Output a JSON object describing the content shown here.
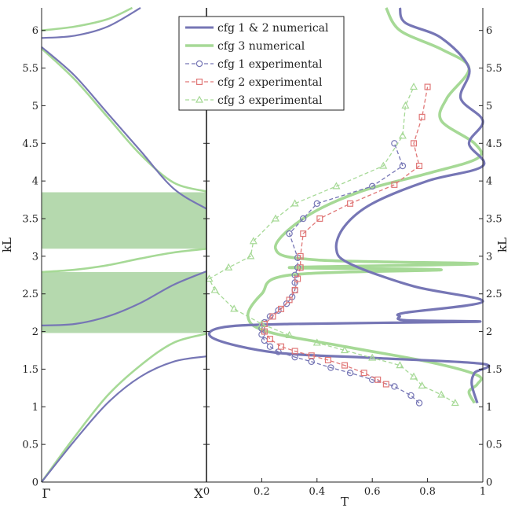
{
  "chart_data": [
    {
      "type": "line",
      "panel": "band-structure",
      "xlabel_left": "Γ",
      "xlabel_right": "X",
      "ylabel": "kL",
      "ylim": [
        0,
        6.3
      ],
      "xlim": [
        0,
        1
      ],
      "yticks": [
        "0",
        "0.5",
        "1",
        "1.5",
        "2",
        "2.5",
        "3",
        "3.5",
        "4",
        "4.5",
        "5",
        "5.5",
        "6"
      ],
      "bandgaps": [
        {
          "name": "bandgap-1",
          "from": 1.98,
          "to": 2.79
        },
        {
          "name": "bandgap-2",
          "from": 3.1,
          "to": 3.85
        }
      ],
      "series": [
        {
          "name": "cfg 1 & 2 numerical",
          "branches": [
            {
              "x": [
                0,
                0.2,
                0.4,
                0.6,
                0.8,
                1.0
              ],
              "y": [
                0,
                0.55,
                1.05,
                1.4,
                1.6,
                1.67
              ]
            },
            {
              "x": [
                0,
                0.2,
                0.4,
                0.6,
                0.8,
                1.0
              ],
              "y": [
                2.08,
                2.1,
                2.2,
                2.38,
                2.62,
                2.8
              ]
            },
            {
              "x": [
                0,
                0.2,
                0.4,
                0.6,
                0.8,
                1.0
              ],
              "y": [
                5.78,
                5.4,
                4.9,
                4.4,
                3.9,
                3.63
              ]
            },
            {
              "x": [
                0,
                0.2,
                0.4,
                0.6
              ],
              "y": [
                5.9,
                5.93,
                6.05,
                6.3
              ]
            }
          ]
        },
        {
          "name": "cfg 3 numerical",
          "branches": [
            {
              "x": [
                0,
                0.2,
                0.4,
                0.6,
                0.8,
                1.0
              ],
              "y": [
                0,
                0.6,
                1.15,
                1.55,
                1.85,
                1.97
              ]
            },
            {
              "x": [
                0,
                0.2,
                0.4,
                0.6,
                0.8,
                1.0
              ],
              "y": [
                2.79,
                2.82,
                2.88,
                2.97,
                3.05,
                3.1
              ]
            },
            {
              "x": [
                0,
                0.2,
                0.4,
                0.6,
                0.8,
                1.0
              ],
              "y": [
                5.76,
                5.35,
                4.85,
                4.35,
                3.98,
                3.86
              ]
            },
            {
              "x": [
                0,
                0.2,
                0.4,
                0.55
              ],
              "y": [
                6.0,
                6.05,
                6.15,
                6.3
              ]
            }
          ]
        }
      ]
    },
    {
      "type": "line",
      "panel": "transmission",
      "xlabel": "T",
      "ylabel": "kL",
      "xlim": [
        0,
        1
      ],
      "ylim": [
        0,
        6.3
      ],
      "xticks": [
        "0",
        "0.2",
        "0.4",
        "0.6",
        "0.8",
        "1"
      ],
      "yticks": [
        "0",
        "0.5",
        "1",
        "1.5",
        "2",
        "2.5",
        "3",
        "3.5",
        "4",
        "4.5",
        "5",
        "5.5",
        "6"
      ],
      "legend": {
        "placement": "top-center",
        "entries": [
          "cfg 1 & 2 numerical",
          "cfg 3 numerical",
          "cfg 1 experimental",
          "cfg 2 experimental",
          "cfg 3 experimental"
        ]
      },
      "series": [
        {
          "name": "cfg 1 & 2 numerical",
          "points": [
            [
              0.98,
              1.05
            ],
            [
              0.96,
              1.3
            ],
            [
              0.97,
              1.45
            ],
            [
              1.0,
              1.57
            ],
            [
              0.6,
              1.65
            ],
            [
              0.25,
              1.72
            ],
            [
              0.03,
              1.9
            ],
            [
              0.05,
              2.05
            ],
            [
              0.3,
              2.1
            ],
            [
              0.98,
              2.13
            ],
            [
              0.72,
              2.15
            ],
            [
              0.7,
              2.2
            ],
            [
              0.72,
              2.25
            ],
            [
              1.0,
              2.4
            ],
            [
              0.75,
              2.6
            ],
            [
              0.52,
              2.9
            ],
            [
              0.47,
              3.1
            ],
            [
              0.5,
              3.4
            ],
            [
              0.6,
              3.7
            ],
            [
              0.8,
              4.0
            ],
            [
              1.0,
              4.2
            ],
            [
              0.95,
              4.5
            ],
            [
              1.0,
              4.8
            ],
            [
              0.92,
              5.1
            ],
            [
              0.95,
              5.5
            ],
            [
              0.85,
              5.9
            ],
            [
              0.72,
              6.1
            ],
            [
              0.7,
              6.3
            ]
          ]
        },
        {
          "name": "cfg 3 numerical",
          "points": [
            [
              0.97,
              1.05
            ],
            [
              0.95,
              1.2
            ],
            [
              0.98,
              1.3
            ],
            [
              0.98,
              1.42
            ],
            [
              0.8,
              1.6
            ],
            [
              0.5,
              1.8
            ],
            [
              0.22,
              2.0
            ],
            [
              0.15,
              2.2
            ],
            [
              0.2,
              2.5
            ],
            [
              0.3,
              2.75
            ],
            [
              0.85,
              2.82
            ],
            [
              0.3,
              2.85
            ],
            [
              0.98,
              2.9
            ],
            [
              0.4,
              2.95
            ],
            [
              0.25,
              3.1
            ],
            [
              0.35,
              3.5
            ],
            [
              0.55,
              3.85
            ],
            [
              0.8,
              4.1
            ],
            [
              0.98,
              4.3
            ],
            [
              0.97,
              4.5
            ],
            [
              0.85,
              4.8
            ],
            [
              0.87,
              5.1
            ],
            [
              0.95,
              5.5
            ],
            [
              0.85,
              5.75
            ],
            [
              0.7,
              6.0
            ],
            [
              0.65,
              6.3
            ]
          ]
        },
        {
          "name": "cfg 1 experimental",
          "marker": "circle",
          "points": [
            [
              0.77,
              1.05
            ],
            [
              0.74,
              1.15
            ],
            [
              0.68,
              1.27
            ],
            [
              0.6,
              1.36
            ],
            [
              0.52,
              1.45
            ],
            [
              0.45,
              1.52
            ],
            [
              0.38,
              1.6
            ],
            [
              0.32,
              1.66
            ],
            [
              0.26,
              1.73
            ],
            [
              0.23,
              1.8
            ],
            [
              0.21,
              1.88
            ],
            [
              0.2,
              1.96
            ],
            [
              0.2,
              2.04
            ],
            [
              0.21,
              2.12
            ],
            [
              0.23,
              2.2
            ],
            [
              0.26,
              2.28
            ],
            [
              0.29,
              2.37
            ],
            [
              0.31,
              2.46
            ],
            [
              0.32,
              2.55
            ],
            [
              0.32,
              2.65
            ],
            [
              0.32,
              2.75
            ],
            [
              0.33,
              2.85
            ],
            [
              0.33,
              2.98
            ],
            [
              0.3,
              3.3
            ],
            [
              0.35,
              3.5
            ],
            [
              0.4,
              3.7
            ],
            [
              0.6,
              3.93
            ],
            [
              0.71,
              4.2
            ],
            [
              0.68,
              4.5
            ]
          ]
        },
        {
          "name": "cfg 2 experimental",
          "marker": "square",
          "points": [
            [
              0.65,
              1.3
            ],
            [
              0.62,
              1.36
            ],
            [
              0.57,
              1.45
            ],
            [
              0.5,
              1.55
            ],
            [
              0.44,
              1.62
            ],
            [
              0.38,
              1.68
            ],
            [
              0.32,
              1.74
            ],
            [
              0.27,
              1.8
            ],
            [
              0.23,
              1.9
            ],
            [
              0.21,
              2.0
            ],
            [
              0.21,
              2.1
            ],
            [
              0.24,
              2.2
            ],
            [
              0.27,
              2.3
            ],
            [
              0.3,
              2.42
            ],
            [
              0.32,
              2.55
            ],
            [
              0.33,
              2.7
            ],
            [
              0.34,
              2.85
            ],
            [
              0.34,
              3.0
            ],
            [
              0.35,
              3.3
            ],
            [
              0.41,
              3.5
            ],
            [
              0.52,
              3.7
            ],
            [
              0.68,
              3.95
            ],
            [
              0.77,
              4.2
            ],
            [
              0.75,
              4.5
            ],
            [
              0.78,
              4.85
            ],
            [
              0.8,
              5.25
            ]
          ]
        },
        {
          "name": "cfg 3 experimental",
          "marker": "triangle",
          "points": [
            [
              0.9,
              1.05
            ],
            [
              0.85,
              1.16
            ],
            [
              0.78,
              1.28
            ],
            [
              0.75,
              1.4
            ],
            [
              0.7,
              1.55
            ],
            [
              0.6,
              1.65
            ],
            [
              0.5,
              1.75
            ],
            [
              0.4,
              1.85
            ],
            [
              0.3,
              1.95
            ],
            [
              0.2,
              2.1
            ],
            [
              0.1,
              2.3
            ],
            [
              0.03,
              2.55
            ],
            [
              0.01,
              2.7
            ],
            [
              0.08,
              2.85
            ],
            [
              0.16,
              3.0
            ],
            [
              0.17,
              3.2
            ],
            [
              0.25,
              3.5
            ],
            [
              0.32,
              3.7
            ],
            [
              0.47,
              3.93
            ],
            [
              0.64,
              4.2
            ],
            [
              0.71,
              4.6
            ],
            [
              0.72,
              5.0
            ],
            [
              0.75,
              5.25
            ]
          ]
        }
      ]
    }
  ],
  "colors": {
    "cfg12": "#7676b5",
    "cfg3": "#a6d996",
    "exp1": "#7676b5",
    "exp2": "#e07777",
    "exp3": "#a6d996",
    "bandgap": "#a8d2a0"
  }
}
